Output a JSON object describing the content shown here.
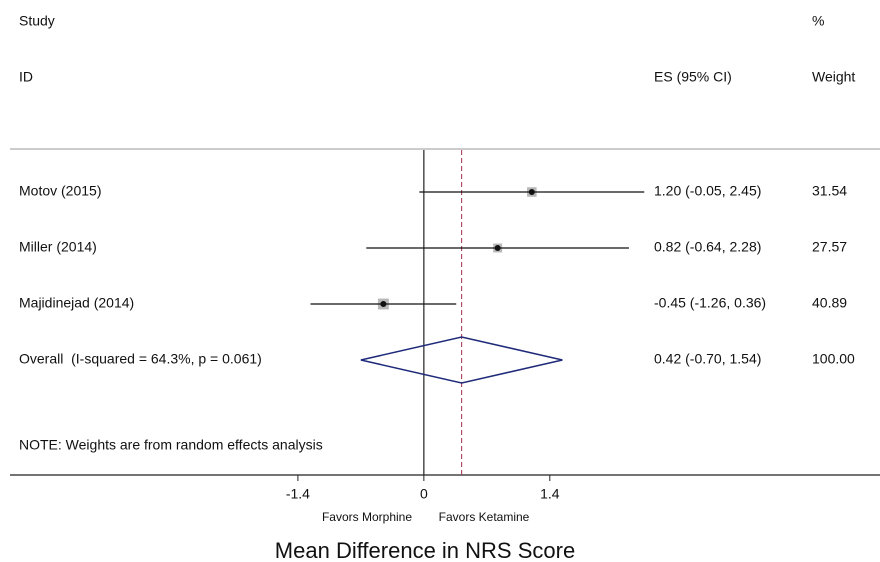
{
  "chart_data": {
    "type": "forest",
    "headers": {
      "study": "Study",
      "id": "ID",
      "es": "ES (95% CI)",
      "pct": "%",
      "weight": "Weight"
    },
    "studies": [
      {
        "name": "Motov (2015)",
        "es": 1.2,
        "lo": -0.05,
        "hi": 2.45,
        "es_label": "1.20 (-0.05, 2.45)",
        "weight": 31.54,
        "weight_label": "31.54"
      },
      {
        "name": "Miller (2014)",
        "es": 0.82,
        "lo": -0.64,
        "hi": 2.28,
        "es_label": "0.82 (-0.64, 2.28)",
        "weight": 27.57,
        "weight_label": "27.57"
      },
      {
        "name": "Majidinejad (2014)",
        "es": -0.45,
        "lo": -1.26,
        "hi": 0.36,
        "es_label": "-0.45 (-1.26, 0.36)",
        "weight": 40.89,
        "weight_label": "40.89"
      }
    ],
    "overall": {
      "name": "Overall  (I-squared = 64.3%, p = 0.061)",
      "es": 0.42,
      "lo": -0.7,
      "hi": 1.54,
      "es_label": "0.42 (-0.70, 1.54)",
      "weight": 100,
      "weight_label": "100.00"
    },
    "note": "NOTE: Weights are from random effects analysis",
    "xlim": [
      -4.6,
      5.07
    ],
    "xticks": [
      -1.4,
      0,
      1.4
    ],
    "left_label": "Favors Morphine",
    "right_label": "Favors Ketamine",
    "xlabel": "Mean Difference in NRS Score",
    "diamond_color": "#1f2a7a",
    "ref_color": "#a0304a",
    "box_color": "#b8b8b8"
  }
}
